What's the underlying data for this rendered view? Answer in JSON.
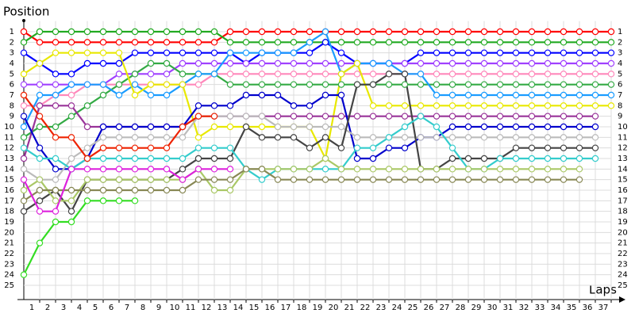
{
  "chart_data": {
    "type": "line",
    "ylabel": "Position",
    "xlabel": "Laps",
    "x": [
      0,
      1,
      2,
      3,
      4,
      5,
      6,
      7,
      8,
      9,
      10,
      11,
      12,
      13,
      14,
      15,
      16,
      17,
      18,
      19,
      20,
      21,
      22,
      23,
      24,
      25,
      26,
      27,
      28,
      29,
      30,
      31,
      32,
      33,
      34,
      35,
      36,
      37
    ],
    "xlim": [
      0,
      37
    ],
    "xticks": [
      1,
      2,
      3,
      4,
      5,
      6,
      7,
      8,
      9,
      10,
      11,
      12,
      13,
      14,
      15,
      16,
      17,
      18,
      19,
      20,
      21,
      22,
      23,
      24,
      25,
      26,
      27,
      28,
      29,
      30,
      31,
      32,
      33,
      34,
      35,
      36,
      37
    ],
    "ylim": [
      26,
      0
    ],
    "yticks": [
      1,
      2,
      3,
      4,
      5,
      6,
      7,
      8,
      9,
      10,
      11,
      12,
      13,
      14,
      15,
      16,
      17,
      18,
      19,
      20,
      21,
      22,
      23,
      24,
      25
    ],
    "grid": true,
    "series": [
      {
        "color": "#ff0000",
        "values": [
          1,
          2,
          2,
          2,
          2,
          2,
          2,
          2,
          2,
          2,
          2,
          2,
          2,
          1,
          1,
          1,
          1,
          1,
          1,
          1,
          1,
          1,
          1,
          1,
          1,
          1,
          1,
          1,
          1,
          1,
          1,
          1,
          1,
          1,
          1,
          1,
          1,
          1
        ]
      },
      {
        "color": "#22aa22",
        "values": [
          2,
          1,
          1,
          1,
          1,
          1,
          1,
          1,
          1,
          1,
          1,
          1,
          1,
          2,
          2,
          2,
          2,
          2,
          2,
          2,
          2,
          2,
          2,
          2,
          2,
          2,
          2,
          2,
          2,
          2,
          2,
          2,
          2,
          2,
          2,
          2,
          2,
          2
        ]
      },
      {
        "color": "#0000ff",
        "values": [
          3,
          4,
          5,
          5,
          4,
          4,
          4,
          3,
          3,
          3,
          3,
          3,
          3,
          3,
          4,
          3,
          3,
          3,
          3,
          2,
          3,
          4,
          4,
          4,
          4,
          3,
          3,
          3,
          3,
          3,
          3,
          3,
          3,
          3,
          3,
          3,
          3,
          3
        ]
      },
      {
        "color": "#a040ff",
        "values": [
          6,
          6,
          6,
          6,
          6,
          6,
          5,
          5,
          5,
          5,
          4,
          4,
          4,
          4,
          4,
          4,
          4,
          4,
          4,
          4,
          4,
          4,
          4,
          4,
          4,
          4,
          4,
          4,
          4,
          4,
          4,
          4,
          4,
          4,
          4,
          4,
          4,
          4
        ]
      },
      {
        "color": "#ff88bb",
        "values": [
          8,
          8,
          7,
          7,
          6,
          6,
          6,
          6,
          6,
          6,
          6,
          6,
          5,
          5,
          5,
          5,
          5,
          5,
          5,
          5,
          5,
          5,
          5,
          5,
          5,
          5,
          5,
          5,
          5,
          5,
          5,
          5,
          5,
          5,
          5,
          5,
          5,
          5
        ]
      },
      {
        "color": "#33aa44",
        "values": [
          11,
          10,
          10,
          9,
          8,
          7,
          6,
          5,
          4,
          4,
          5,
          5,
          5,
          6,
          6,
          6,
          6,
          6,
          6,
          6,
          6,
          6,
          6,
          6,
          6,
          6,
          6,
          6,
          6,
          6,
          6,
          6,
          6,
          6,
          6,
          6,
          6,
          6
        ]
      },
      {
        "color": "#1a9cff",
        "values": [
          10,
          7,
          7,
          6,
          6,
          6,
          7,
          6,
          7,
          7,
          6,
          5,
          5,
          3,
          3,
          3,
          3,
          3,
          2,
          1,
          5,
          4,
          4,
          4,
          5,
          5,
          7,
          7,
          7,
          7,
          7,
          7,
          7,
          7,
          7,
          7,
          7,
          7
        ]
      },
      {
        "color": "#e8e800",
        "values": [
          5,
          4,
          3,
          3,
          3,
          3,
          3,
          7,
          6,
          6,
          6,
          11,
          10,
          10,
          10,
          10,
          10,
          10,
          10,
          13,
          5,
          4,
          8,
          8,
          8,
          8,
          8,
          8,
          8,
          8,
          8,
          8,
          8,
          8,
          8,
          8,
          8,
          8
        ]
      },
      {
        "color": "#993399",
        "values": [
          13,
          8,
          8,
          8,
          10,
          10,
          10,
          10,
          10,
          10,
          10,
          9,
          9,
          9,
          9,
          9,
          9,
          9,
          9,
          9,
          9,
          9,
          9,
          9,
          9,
          9,
          9,
          9,
          9,
          9,
          9,
          9,
          9,
          9,
          9,
          9,
          9,
          null
        ]
      },
      {
        "color": "#0000cc",
        "values": [
          9,
          12,
          14,
          14,
          13,
          10,
          10,
          10,
          10,
          10,
          10,
          8,
          8,
          8,
          7,
          7,
          7,
          8,
          8,
          7,
          7,
          13,
          13,
          12,
          12,
          11,
          11,
          10,
          10,
          10,
          10,
          10,
          10,
          10,
          10,
          10,
          10,
          null
        ]
      },
      {
        "color": "#bbbbbb",
        "values": [
          14,
          15,
          15,
          13,
          12,
          11,
          11,
          11,
          11,
          11,
          11,
          9,
          9,
          9,
          9,
          9,
          10,
          10,
          10,
          10,
          10,
          11,
          11,
          11,
          11,
          11,
          11,
          11,
          11,
          11,
          11,
          11,
          11,
          11,
          11,
          11,
          11,
          null
        ]
      },
      {
        "color": "#444444",
        "values": [
          18,
          17,
          16,
          18,
          15,
          15,
          15,
          15,
          15,
          15,
          14,
          13,
          13,
          13,
          10,
          11,
          11,
          11,
          12,
          11,
          12,
          6,
          6,
          5,
          5,
          14,
          14,
          13,
          13,
          13,
          13,
          12,
          12,
          12,
          12,
          12,
          12,
          null
        ]
      },
      {
        "color": "#33cccc",
        "values": [
          12,
          13,
          13,
          14,
          13,
          13,
          13,
          13,
          13,
          13,
          13,
          12,
          12,
          12,
          14,
          15,
          14,
          14,
          14,
          14,
          14,
          12,
          12,
          11,
          10,
          9,
          10,
          12,
          14,
          14,
          13,
          13,
          13,
          13,
          13,
          13,
          13,
          null
        ]
      },
      {
        "color": "#aac866",
        "values": [
          16,
          15,
          17,
          17,
          15,
          15,
          15,
          15,
          15,
          15,
          15,
          14,
          16,
          16,
          14,
          14,
          14,
          14,
          14,
          13,
          14,
          14,
          14,
          14,
          14,
          14,
          14,
          14,
          14,
          14,
          14,
          14,
          14,
          14,
          14,
          14,
          null,
          null
        ]
      },
      {
        "color": "#888855",
        "values": [
          17,
          16,
          16,
          16,
          16,
          16,
          16,
          16,
          16,
          16,
          16,
          15,
          15,
          15,
          14,
          14,
          15,
          15,
          15,
          15,
          15,
          15,
          15,
          15,
          15,
          15,
          15,
          15,
          15,
          15,
          15,
          15,
          15,
          15,
          15,
          15,
          null,
          null
        ]
      },
      {
        "color": "#33dd22",
        "values": [
          24,
          21,
          19,
          19,
          17,
          17,
          17,
          17,
          null,
          null,
          null,
          null,
          null,
          null,
          null,
          null,
          null,
          null,
          null,
          null,
          null,
          null,
          null,
          null,
          null,
          null,
          null,
          null,
          null,
          null,
          null,
          null,
          null,
          null,
          null,
          null,
          null,
          null
        ]
      },
      {
        "color": "#ee2200",
        "values": [
          7,
          9,
          11,
          11,
          13,
          12,
          12,
          12,
          12,
          12,
          10,
          9,
          9,
          null,
          null,
          null,
          null,
          null,
          null,
          null,
          null,
          null,
          null,
          null,
          null,
          null,
          null,
          null,
          null,
          null,
          null,
          null,
          null,
          null,
          null,
          null,
          null,
          null
        ]
      },
      {
        "color": "#dd22dd",
        "values": [
          15,
          18,
          18,
          14,
          14,
          14,
          14,
          14,
          14,
          14,
          15,
          14,
          14,
          14,
          null,
          null,
          null,
          null,
          null,
          null,
          null,
          null,
          null,
          null,
          null,
          null,
          null,
          null,
          null,
          null,
          null,
          null,
          null,
          null,
          null,
          null,
          null,
          null
        ]
      }
    ]
  }
}
